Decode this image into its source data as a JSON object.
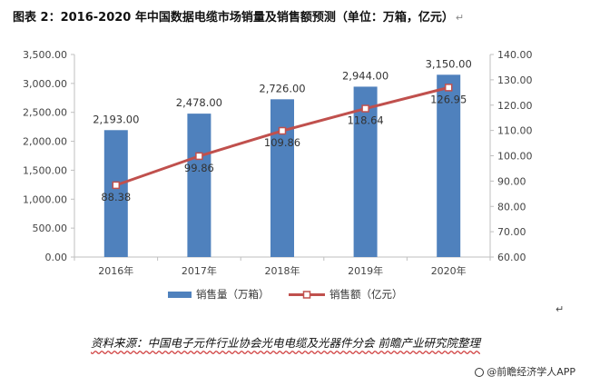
{
  "title": "图表 2：2016-2020 年中国数据电缆市场销量及销售额预测（单位：万箱，亿元）",
  "paragraph_mark": "↵",
  "chart_data": {
    "type": "bar",
    "categories": [
      "2016年",
      "2017年",
      "2018年",
      "2019年",
      "2020年"
    ],
    "series": [
      {
        "name": "销售量（万箱）",
        "type": "bar",
        "axis": "left",
        "color": "#4f81bd",
        "values": [
          2193.0,
          2478.0,
          2726.0,
          2944.0,
          3150.0
        ],
        "labels": [
          "2,193.00",
          "2,478.00",
          "2,726.00",
          "2,944.00",
          "3,150.00"
        ]
      },
      {
        "name": "销售额（亿元）",
        "type": "line",
        "axis": "right",
        "color": "#c0504d",
        "values": [
          88.38,
          99.86,
          109.86,
          118.64,
          126.95
        ],
        "labels": [
          "88.38",
          "99.86",
          "109.86",
          "118.64",
          "126.95"
        ]
      }
    ],
    "y_left": {
      "lim": [
        0,
        3500
      ],
      "ticks": [
        "0.00",
        "500.00",
        "1,000.00",
        "1,500.00",
        "2,000.00",
        "2,500.00",
        "3,000.00",
        "3,500.00"
      ]
    },
    "y_right": {
      "lim": [
        60,
        140
      ],
      "ticks": [
        "60.00",
        "70.00",
        "80.00",
        "90.00",
        "100.00",
        "110.00",
        "120.00",
        "130.00",
        "140.00"
      ]
    },
    "grid": false,
    "legend_position": "bottom"
  },
  "source": "资料来源：中国电子元件行业协会光电电缆及光器件分会 前瞻产业研究院整理",
  "watermark": "@前瞻经济学人APP"
}
